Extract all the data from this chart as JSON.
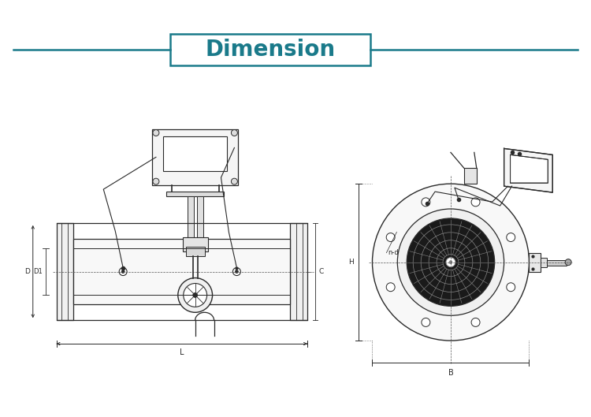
{
  "title": "Dimension",
  "title_color": "#1a7a8a",
  "title_fontsize": 20,
  "bg_color": "#ffffff",
  "line_color": "#2a2a2a",
  "teal_color": "#1a7a8a",
  "label_D": "D",
  "label_D1": "D1",
  "label_L": "L",
  "label_C": "C",
  "label_B": "B",
  "label_H": "H",
  "label_nd": "n-d"
}
